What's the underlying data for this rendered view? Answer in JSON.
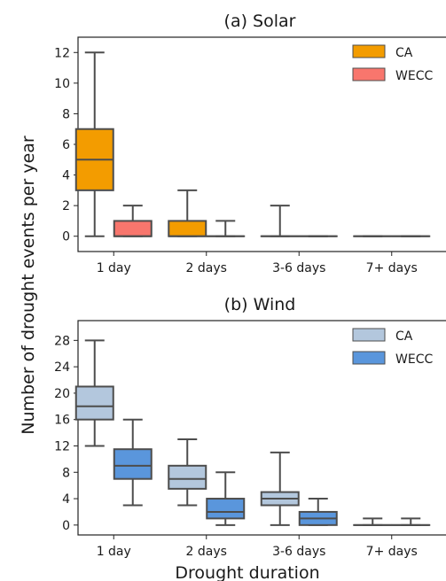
{
  "ylabel_shared": "Number of drought events per year",
  "chart_data": [
    {
      "type": "box",
      "title": "(a) Solar",
      "xlabel": "",
      "ylabel": "Number of drought events per year",
      "categories": [
        "1 day",
        "2 days",
        "3-6 days",
        "7+ days"
      ],
      "ylim": [
        -1,
        13
      ],
      "yticks": [
        0,
        2,
        4,
        6,
        8,
        10,
        12
      ],
      "legend_position": "top-right",
      "grid": false,
      "series": [
        {
          "name": "CA",
          "color": "#f39c00",
          "boxes": [
            {
              "min": 0,
              "q1": 3,
              "median": 5,
              "q3": 7,
              "max": 12
            },
            {
              "min": 0,
              "q1": 0,
              "median": 0,
              "q3": 1,
              "max": 3
            },
            {
              "min": 0,
              "q1": 0,
              "median": 0,
              "q3": 0,
              "max": 2
            },
            {
              "min": 0,
              "q1": 0,
              "median": 0,
              "q3": 0,
              "max": 0
            }
          ]
        },
        {
          "name": "WECC",
          "color": "#f8766d",
          "boxes": [
            {
              "min": 0,
              "q1": 0,
              "median": 0,
              "q3": 1,
              "max": 2
            },
            {
              "min": 0,
              "q1": 0,
              "median": 0,
              "q3": 0,
              "max": 1
            },
            {
              "min": 0,
              "q1": 0,
              "median": 0,
              "q3": 0,
              "max": 0
            },
            {
              "min": 0,
              "q1": 0,
              "median": 0,
              "q3": 0,
              "max": 0
            }
          ]
        }
      ]
    },
    {
      "type": "box",
      "title": "(b) Wind",
      "xlabel": "Drought duration",
      "ylabel": "Number of drought events per year",
      "categories": [
        "1 day",
        "2 days",
        "3-6 days",
        "7+ days"
      ],
      "ylim": [
        -1.5,
        31
      ],
      "yticks": [
        0,
        4,
        8,
        12,
        16,
        20,
        24,
        28
      ],
      "legend_position": "top-right",
      "grid": false,
      "series": [
        {
          "name": "CA",
          "color": "#b3c7dd",
          "boxes": [
            {
              "min": 12,
              "q1": 16,
              "median": 18,
              "q3": 21,
              "max": 28
            },
            {
              "min": 3,
              "q1": 5.5,
              "median": 7,
              "q3": 9,
              "max": 13
            },
            {
              "min": 0,
              "q1": 3,
              "median": 4,
              "q3": 5,
              "max": 11
            },
            {
              "min": 0,
              "q1": 0,
              "median": 0,
              "q3": 0,
              "max": 1
            }
          ]
        },
        {
          "name": "WECC",
          "color": "#5a96dc",
          "boxes": [
            {
              "min": 3,
              "q1": 7,
              "median": 9,
              "q3": 11.5,
              "max": 16
            },
            {
              "min": 0,
              "q1": 1,
              "median": 2,
              "q3": 4,
              "max": 8
            },
            {
              "min": 0,
              "q1": 0,
              "median": 1,
              "q3": 2,
              "max": 4
            },
            {
              "min": 0,
              "q1": 0,
              "median": 0,
              "q3": 0,
              "max": 1
            }
          ]
        }
      ]
    }
  ]
}
